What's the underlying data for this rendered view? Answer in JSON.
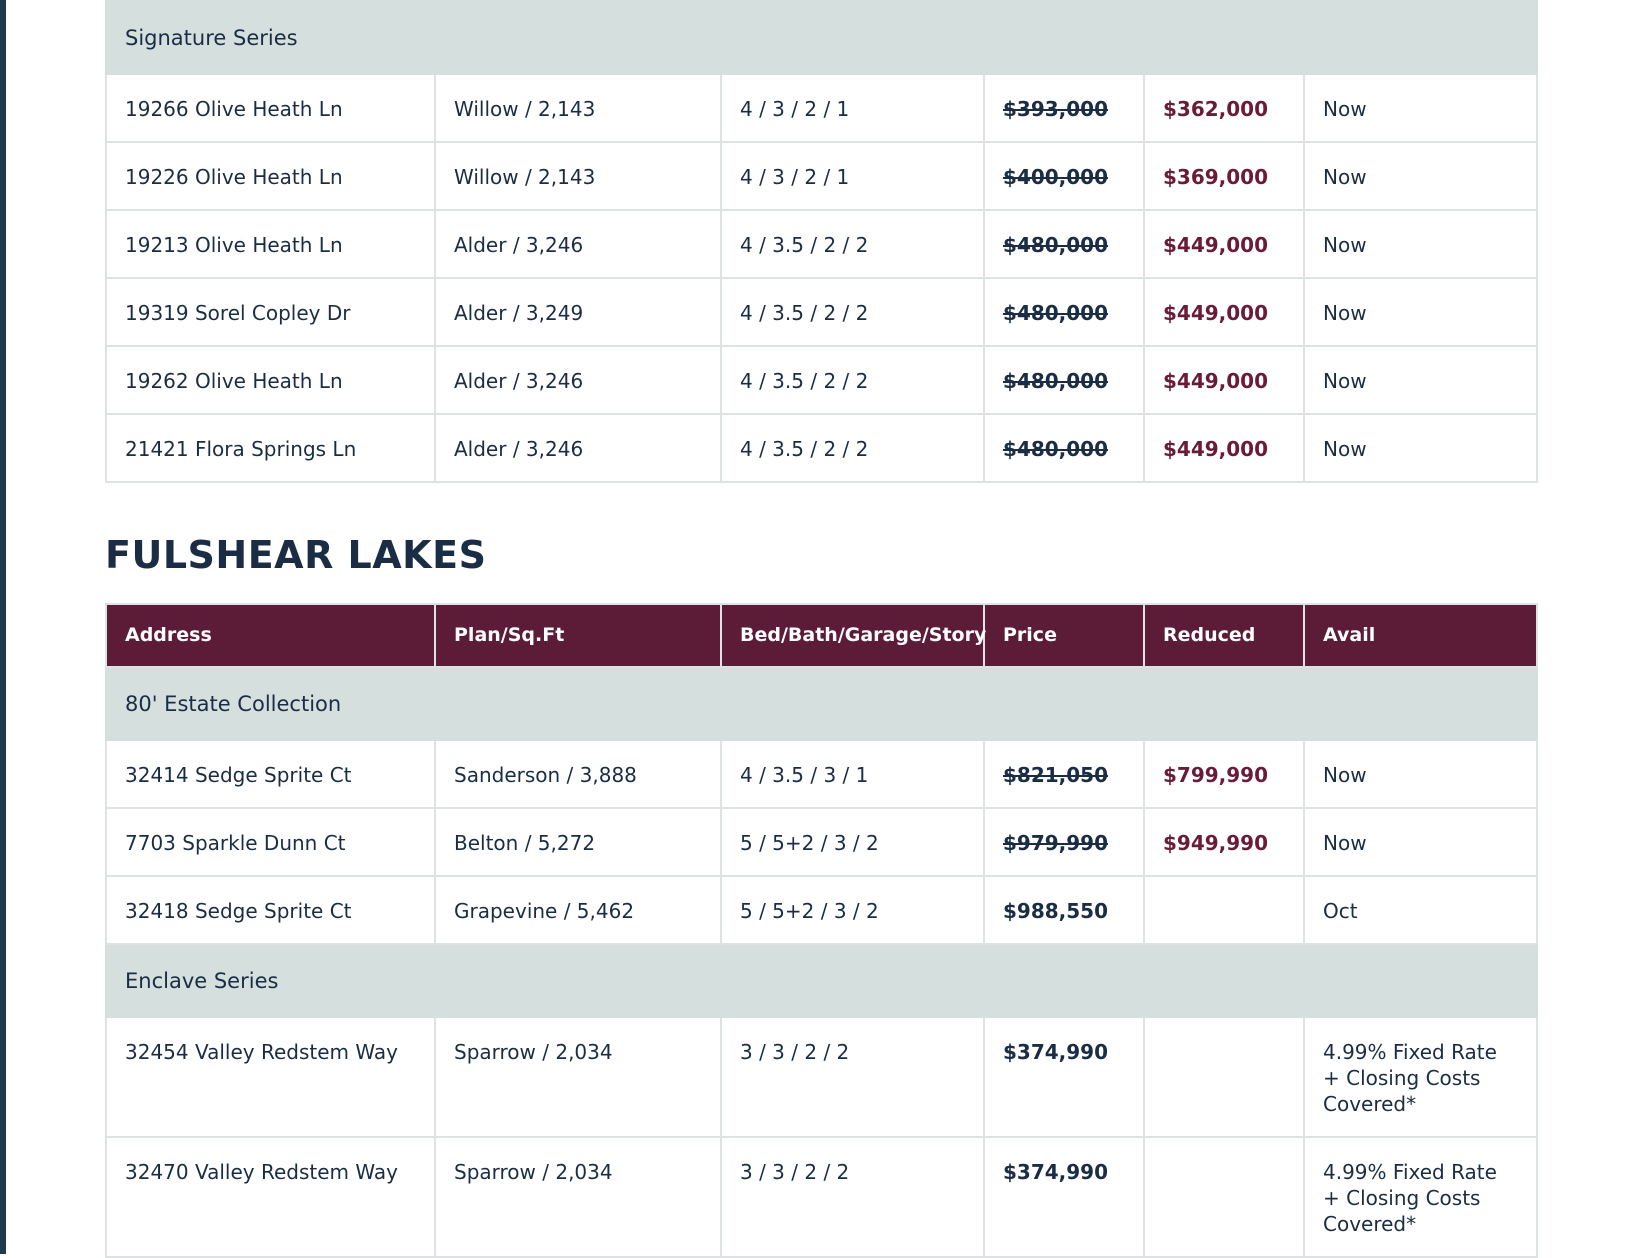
{
  "tables": [
    {
      "groups": [
        {
          "name": "Signature Series",
          "rows": [
            {
              "address": "19266 Olive Heath Ln",
              "plan": "Willow / 2,143",
              "rooms": "4 / 3 / 2 / 1",
              "price": "$393,000",
              "reduced": "$362,000",
              "avail": "Now"
            },
            {
              "address": "19226 Olive Heath Ln",
              "plan": "Willow / 2,143",
              "rooms": "4 / 3 / 2 / 1",
              "price": "$400,000",
              "reduced": "$369,000",
              "avail": "Now"
            },
            {
              "address": "19213 Olive Heath Ln",
              "plan": "Alder / 3,246",
              "rooms": "4 / 3.5 / 2 / 2",
              "price": "$480,000",
              "reduced": "$449,000",
              "avail": "Now"
            },
            {
              "address": "19319 Sorel Copley Dr",
              "plan": "Alder / 3,249",
              "rooms": "4 / 3.5 / 2 / 2",
              "price": "$480,000",
              "reduced": "$449,000",
              "avail": "Now"
            },
            {
              "address": "19262 Olive Heath Ln",
              "plan": "Alder / 3,246",
              "rooms": "4 / 3.5 / 2 / 2",
              "price": "$480,000",
              "reduced": "$449,000",
              "avail": "Now"
            },
            {
              "address": "21421 Flora Springs Ln",
              "plan": "Alder / 3,246",
              "rooms": "4 / 3.5 / 2 / 2",
              "price": "$480,000",
              "reduced": "$449,000",
              "avail": "Now"
            }
          ]
        }
      ]
    },
    {
      "title": "FULSHEAR LAKES",
      "columns": [
        "Address",
        "Plan/Sq.Ft",
        "Bed/Bath/Garage/Story",
        "Price",
        "Reduced",
        "Avail"
      ],
      "groups": [
        {
          "name": "80' Estate Collection",
          "rows": [
            {
              "address": "32414 Sedge Sprite Ct",
              "plan": "Sanderson / 3,888",
              "rooms": "4 / 3.5 / 3 / 1",
              "price": "$821,050",
              "reduced": "$799,990",
              "avail": "Now"
            },
            {
              "address": "7703 Sparkle Dunn Ct",
              "plan": "Belton / 5,272",
              "rooms": "5 / 5+2 / 3 / 2",
              "price": "$979,990",
              "reduced": "$949,990",
              "avail": "Now"
            },
            {
              "address": "32418 Sedge Sprite Ct",
              "plan": "Grapevine / 5,462",
              "rooms": "5 / 5+2 / 3 / 2",
              "price": "$988,550",
              "avail": "Oct"
            }
          ]
        },
        {
          "name": "Enclave Series",
          "rows": [
            {
              "address": "32454 Valley Redstem Way",
              "plan": "Sparrow / 2,034",
              "rooms": "3 / 3 / 2 / 2",
              "price": "$374,990",
              "avail": "4.99% Fixed Rate + Closing Costs Covered*"
            },
            {
              "address": "32470 Valley Redstem Way",
              "plan": "Sparrow / 2,034",
              "rooms": "3 / 3 / 2 / 2",
              "price": "$374,990",
              "avail": "4.99% Fixed Rate + Closing Costs Covered*"
            }
          ]
        }
      ]
    }
  ]
}
